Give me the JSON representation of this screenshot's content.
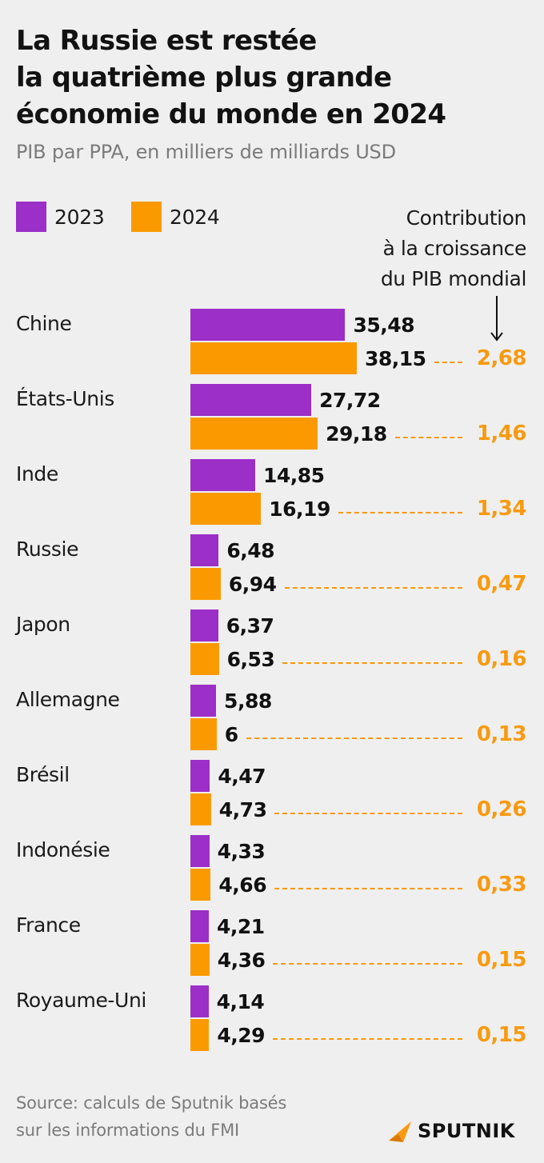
{
  "header": {
    "title_lines": [
      "La Russie est restée",
      "la quatrième plus grande",
      "économie du monde en 2024"
    ],
    "subtitle": "PIB par PPA, en milliers de milliards USD"
  },
  "legend": [
    {
      "label": "2023",
      "color": "#9b2fc8"
    },
    {
      "label": "2024",
      "color": "#fb9a00"
    }
  ],
  "contribution_header": {
    "lines": [
      "Contribution",
      "à la croissance",
      "du PIB mondial"
    ],
    "icon": "arrow-down-icon"
  },
  "colors": {
    "y2023": "#9b2fc8",
    "y2024": "#fb9a00",
    "contribution": "#f89a10",
    "background": "#efefef"
  },
  "chart_data": {
    "type": "bar",
    "orientation": "horizontal",
    "title": "La Russie est restée la quatrième plus grande économie du monde en 2024",
    "subtitle": "PIB par PPA, en milliers de milliards USD",
    "categories": [
      "Chine",
      "États-Unis",
      "Inde",
      "Russie",
      "Japon",
      "Allemagne",
      "Brésil",
      "Indonésie",
      "France",
      "Royaume-Uni"
    ],
    "series": [
      {
        "name": "2023",
        "values": [
          35.48,
          27.72,
          14.85,
          6.48,
          6.37,
          5.88,
          4.47,
          4.33,
          4.21,
          4.14
        ],
        "labels": [
          "35,48",
          "27,72",
          "14,85",
          "6,48",
          "6,37",
          "5,88",
          "4,47",
          "4,33",
          "4,21",
          "4,14"
        ]
      },
      {
        "name": "2024",
        "values": [
          38.15,
          29.18,
          16.19,
          6.94,
          6.53,
          6,
          4.73,
          4.66,
          4.36,
          4.29
        ],
        "labels": [
          "38,15",
          "29,18",
          "16,19",
          "6,94",
          "6,53",
          "6",
          "4,73",
          "4,66",
          "4,36",
          "4,29"
        ]
      }
    ],
    "contribution": {
      "name": "Contribution à la croissance du PIB mondial",
      "values": [
        2.68,
        1.46,
        1.34,
        0.47,
        0.16,
        0.13,
        0.26,
        0.33,
        0.15,
        0.15
      ],
      "labels": [
        "2,68",
        "1,46",
        "1,34",
        "0,47",
        "0,16",
        "0,13",
        "0,26",
        "0,33",
        "0,15",
        "0,15"
      ]
    },
    "xlim": [
      0,
      38.15
    ],
    "grid": false,
    "legend_position": "top-left"
  },
  "footer": {
    "source_lines": [
      "Source: calculs de Sputnik basés",
      "sur les informations du FMI"
    ],
    "logo_text": "SPUTNIK",
    "logo_icon": "sputnik-logo-icon"
  }
}
